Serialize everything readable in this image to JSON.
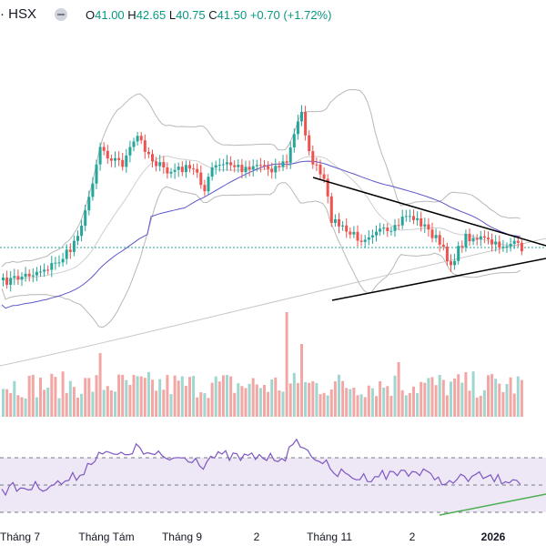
{
  "header": {
    "symbol": "· HSX",
    "o_label": "O",
    "o": "41.00",
    "h_label": "H",
    "h": "42.65",
    "l_label": "L",
    "l": "40.75",
    "c_label": "C",
    "c": "41.50",
    "change": "+0.70 (+1.72%)"
  },
  "colors": {
    "up": "#26a69a",
    "down": "#ef5350",
    "vol_up": "#9fd6cf",
    "vol_down": "#f3a7a4",
    "band": "#b8b8b8",
    "ma": "#5b57c9",
    "rsi": "#7e57c2",
    "trend": "#000000",
    "rsi_trend": "#4caf50"
  },
  "chart_data": {
    "type": "candlestick",
    "x_axis_labels": [
      "Tháng 7",
      "Tháng Tám",
      "Tháng 9",
      "2",
      "Tháng 11",
      "2",
      "2026"
    ],
    "price_levels": {
      "last": 41.5,
      "open": 41.0,
      "high": 42.65,
      "low": 40.75
    },
    "indicators": [
      "Bollinger Bands",
      "Moving Average",
      "Volume",
      "RSI"
    ],
    "rsi_levels": [
      70,
      50,
      30
    ]
  }
}
